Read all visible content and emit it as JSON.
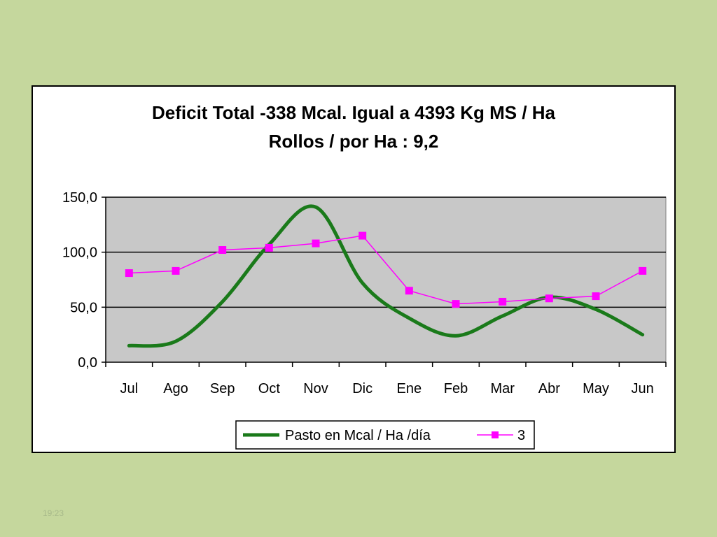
{
  "chart_data": {
    "type": "line",
    "title_lines": [
      "Deficit Total -338 Mcal. Igual a 4393 Kg MS / Ha",
      "Rollos / por Ha : 9,2"
    ],
    "categories": [
      "Jul",
      "Ago",
      "Sep",
      "Oct",
      "Nov",
      "Dic",
      "Ene",
      "Feb",
      "Mar",
      "Abr",
      "May",
      "Jun"
    ],
    "y_ticks": [
      "0,0",
      "50,0",
      "100,0",
      "150,0"
    ],
    "ylim": [
      0,
      150
    ],
    "grid": true,
    "legend_position": "bottom",
    "series": [
      {
        "name": "Pasto en Mcal / Ha /día",
        "color": "#1a7a1a",
        "smooth": true,
        "marker": "none",
        "values": [
          15,
          19,
          55,
          107,
          141,
          72,
          40,
          24,
          42,
          59,
          48,
          25
        ]
      },
      {
        "name": "3",
        "color": "#ff00ff",
        "smooth": false,
        "marker": "square",
        "values": [
          81,
          83,
          102,
          104,
          108,
          115,
          65,
          53,
          55,
          58,
          60,
          83
        ]
      }
    ]
  },
  "timestamp": "19:23"
}
